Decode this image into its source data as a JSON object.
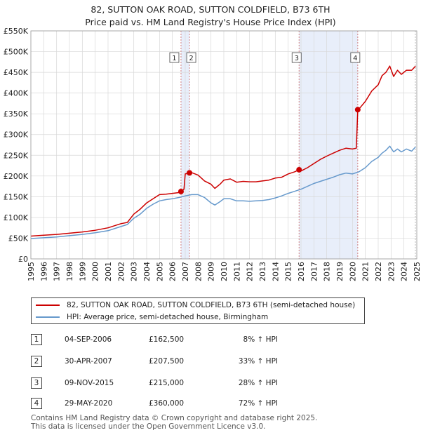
{
  "title_line1": "82, SUTTON OAK ROAD, SUTTON COLDFIELD, B73 6TH",
  "title_line2": "Price paid vs. HM Land Registry's House Price Index (HPI)",
  "colors": {
    "property": "#cc0000",
    "hpi": "#6699cc",
    "shade": "#e8eefa",
    "marker_line": "#d08080",
    "grid": "#d8d8d8"
  },
  "chart_data": {
    "type": "line",
    "title": "Price paid vs. HM Land Registry's House Price Index (HPI)",
    "xlabel": "",
    "ylabel": "",
    "xlim": [
      1995,
      2025
    ],
    "ylim": [
      0,
      550000
    ],
    "x_ticks": [
      1995,
      1996,
      1997,
      1998,
      1999,
      2000,
      2001,
      2002,
      2003,
      2004,
      2005,
      2006,
      2007,
      2008,
      2009,
      2010,
      2011,
      2012,
      2013,
      2014,
      2015,
      2016,
      2017,
      2018,
      2019,
      2020,
      2021,
      2022,
      2023,
      2024,
      2025
    ],
    "y_ticks": [
      0,
      50000,
      100000,
      150000,
      200000,
      250000,
      300000,
      350000,
      400000,
      450000,
      500000,
      550000
    ],
    "y_tick_labels": [
      "£0",
      "£50K",
      "£100K",
      "£150K",
      "£200K",
      "£250K",
      "£300K",
      "£350K",
      "£400K",
      "£450K",
      "£500K",
      "£550K"
    ],
    "series": [
      {
        "name": "82, SUTTON OAK ROAD, SUTTON COLDFIELD, B73 6TH (semi-detached house)",
        "color": "#cc0000",
        "x": [
          1995.0,
          1996.0,
          1997.0,
          1998.0,
          1999.0,
          2000.0,
          2001.0,
          2002.0,
          2002.5,
          2003.0,
          2003.5,
          2004.0,
          2004.5,
          2005.0,
          2005.5,
          2006.0,
          2006.5,
          2006.67,
          2006.9,
          2007.0,
          2007.33,
          2007.5,
          2008.0,
          2008.5,
          2009.0,
          2009.3,
          2009.7,
          2010.0,
          2010.5,
          2011.0,
          2011.5,
          2012.0,
          2012.5,
          2013.0,
          2013.5,
          2014.0,
          2014.5,
          2015.0,
          2015.5,
          2015.85,
          2016.0,
          2016.5,
          2017.0,
          2017.5,
          2018.0,
          2018.5,
          2019.0,
          2019.5,
          2020.0,
          2020.3,
          2020.41,
          2020.6,
          2021.0,
          2021.5,
          2022.0,
          2022.3,
          2022.6,
          2022.9,
          2023.2,
          2023.5,
          2023.8,
          2024.2,
          2024.6,
          2024.9
        ],
        "y": [
          55000,
          57000,
          59000,
          62000,
          65000,
          69000,
          75000,
          85000,
          88000,
          108000,
          120000,
          135000,
          145000,
          155000,
          156000,
          158000,
          160000,
          162500,
          168000,
          205000,
          207500,
          208000,
          202000,
          188000,
          180000,
          170000,
          180000,
          190000,
          193000,
          185000,
          187000,
          186000,
          186000,
          188000,
          190000,
          195000,
          197000,
          205000,
          210000,
          215000,
          212000,
          220000,
          230000,
          240000,
          248000,
          255000,
          262000,
          267000,
          265000,
          267000,
          360000,
          365000,
          380000,
          405000,
          420000,
          442000,
          450000,
          465000,
          440000,
          455000,
          445000,
          455000,
          455000,
          465000
        ]
      },
      {
        "name": "HPI: Average price, semi-detached house, Birmingham",
        "color": "#6699cc",
        "x": [
          1995.0,
          1996.0,
          1997.0,
          1998.0,
          1999.0,
          2000.0,
          2001.0,
          2002.0,
          2002.5,
          2003.0,
          2003.5,
          2004.0,
          2004.5,
          2005.0,
          2005.5,
          2006.0,
          2006.5,
          2007.0,
          2007.5,
          2008.0,
          2008.5,
          2009.0,
          2009.3,
          2009.7,
          2010.0,
          2010.5,
          2011.0,
          2011.5,
          2012.0,
          2012.5,
          2013.0,
          2013.5,
          2014.0,
          2014.5,
          2015.0,
          2015.5,
          2016.0,
          2016.5,
          2017.0,
          2017.5,
          2018.0,
          2018.5,
          2019.0,
          2019.5,
          2020.0,
          2020.5,
          2021.0,
          2021.5,
          2022.0,
          2022.3,
          2022.6,
          2022.9,
          2023.2,
          2023.5,
          2023.8,
          2024.2,
          2024.6,
          2024.9
        ],
        "y": [
          49000,
          51000,
          53000,
          56000,
          59000,
          63000,
          68000,
          78000,
          83000,
          98000,
          108000,
          122000,
          132000,
          140000,
          143000,
          145000,
          148000,
          152000,
          155000,
          155000,
          148000,
          135000,
          130000,
          138000,
          145000,
          145000,
          140000,
          140000,
          139000,
          140000,
          141000,
          143000,
          147000,
          152000,
          158000,
          163000,
          168000,
          175000,
          182000,
          187000,
          192000,
          197000,
          203000,
          207000,
          205000,
          210000,
          220000,
          235000,
          245000,
          255000,
          262000,
          272000,
          258000,
          265000,
          258000,
          265000,
          260000,
          270000
        ]
      }
    ],
    "sales": [
      {
        "label": "1",
        "x": 2006.67,
        "y": 162500
      },
      {
        "label": "2",
        "x": 2007.33,
        "y": 207500
      },
      {
        "label": "3",
        "x": 2015.85,
        "y": 215000
      },
      {
        "label": "4",
        "x": 2020.41,
        "y": 360000
      }
    ],
    "shaded_ranges": [
      [
        2006.67,
        2007.33
      ],
      [
        2015.85,
        2020.41
      ]
    ],
    "legend_position": "below"
  },
  "legend": {
    "property_label": "82, SUTTON OAK ROAD, SUTTON COLDFIELD, B73 6TH (semi-detached house)",
    "hpi_label": "HPI: Average price, semi-detached house, Birmingham"
  },
  "transactions": [
    {
      "num": "1",
      "date": "04-SEP-2006",
      "price": "£162,500",
      "hpi": "8% ↑ HPI"
    },
    {
      "num": "2",
      "date": "30-APR-2007",
      "price": "£207,500",
      "hpi": "33% ↑ HPI"
    },
    {
      "num": "3",
      "date": "09-NOV-2015",
      "price": "£215,000",
      "hpi": "28% ↑ HPI"
    },
    {
      "num": "4",
      "date": "29-MAY-2020",
      "price": "£360,000",
      "hpi": "72% ↑ HPI"
    }
  ],
  "footer_line1": "Contains HM Land Registry data © Crown copyright and database right 2025.",
  "footer_line2": "This data is licensed under the Open Government Licence v3.0."
}
